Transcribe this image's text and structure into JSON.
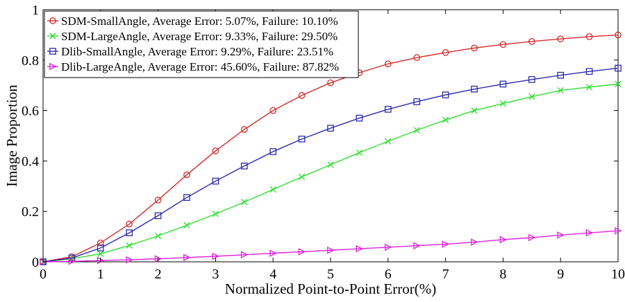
{
  "chart_data": {
    "type": "line",
    "title": "",
    "xlabel": "Normalized Point-to-Point Error(%)",
    "ylabel": "Image Proportion",
    "xlim": [
      0,
      10
    ],
    "ylim": [
      0,
      1
    ],
    "xticks": [
      0,
      1,
      2,
      3,
      4,
      5,
      6,
      7,
      8,
      9,
      10
    ],
    "yticks": [
      0,
      0.2,
      0.4,
      0.6,
      0.8,
      1
    ],
    "ytick_labels": [
      "0",
      "0.2",
      "0.4",
      "0.6",
      "0.8",
      "1"
    ],
    "grid": false,
    "legend_position": "top-left",
    "x": [
      0,
      0.5,
      1,
      1.5,
      2,
      2.5,
      3,
      3.5,
      4,
      4.5,
      5,
      5.5,
      6,
      6.5,
      7,
      7.5,
      8,
      8.5,
      9,
      9.5,
      10
    ],
    "series": [
      {
        "name": "SDM-SmallAngle, Average Error: 5.07%, Failure: 10.10%",
        "color": "#d42a2a",
        "marker": "circle",
        "values": [
          0.0,
          0.02,
          0.075,
          0.15,
          0.245,
          0.345,
          0.44,
          0.525,
          0.6,
          0.66,
          0.71,
          0.75,
          0.785,
          0.81,
          0.83,
          0.848,
          0.862,
          0.874,
          0.884,
          0.893,
          0.9
        ]
      },
      {
        "name": "SDM-LargeAngle, Average Error: 9.33%, Failure: 29.50%",
        "color": "#33dd33",
        "marker": "x",
        "values": [
          0.0,
          0.012,
          0.032,
          0.065,
          0.103,
          0.145,
          0.19,
          0.237,
          0.287,
          0.337,
          0.385,
          0.433,
          0.478,
          0.522,
          0.563,
          0.6,
          0.628,
          0.655,
          0.68,
          0.693,
          0.705
        ]
      },
      {
        "name": "Dlib-SmallAngle, Average Error: 9.29%, Failure: 23.51%",
        "color": "#2a2aaa",
        "marker": "square",
        "values": [
          0.0,
          0.015,
          0.055,
          0.115,
          0.183,
          0.255,
          0.32,
          0.38,
          0.437,
          0.487,
          0.53,
          0.57,
          0.605,
          0.635,
          0.662,
          0.685,
          0.705,
          0.723,
          0.74,
          0.755,
          0.768
        ]
      },
      {
        "name": "Dlib-LargeAngle, Average Error: 45.60%, Failure: 87.82%",
        "color": "#dd22dd",
        "marker": "triangle-right",
        "values": [
          0.0,
          0.002,
          0.005,
          0.008,
          0.012,
          0.017,
          0.022,
          0.028,
          0.034,
          0.04,
          0.046,
          0.052,
          0.058,
          0.064,
          0.07,
          0.078,
          0.088,
          0.096,
          0.106,
          0.115,
          0.123
        ]
      }
    ]
  }
}
